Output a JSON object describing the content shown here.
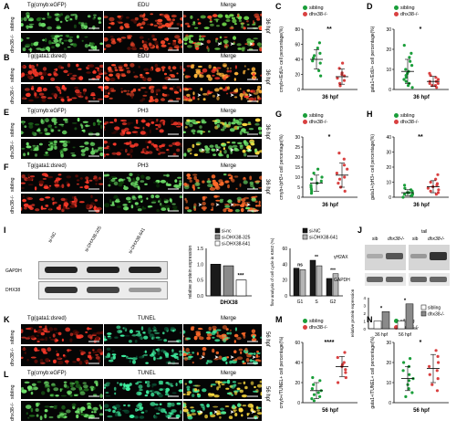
{
  "panels": {
    "A": {
      "letter": "A",
      "titles": [
        "Tg(cmyb:eGFP)",
        "EDU",
        "Merge"
      ],
      "rows": [
        "sibling",
        "dhx38-/-"
      ],
      "stage": "36 hpf"
    },
    "B": {
      "letter": "B",
      "titles": [
        "Tg(gata1:dsred)",
        "EDU",
        "Merge"
      ],
      "rows": [
        "sibling",
        "dhx38-/-"
      ],
      "stage": "36 hpf"
    },
    "E": {
      "letter": "E",
      "titles": [
        "Tg(cmyb:eGFP)",
        "PH3",
        "Merge"
      ],
      "rows": [
        "sibling",
        "dhx38-/-"
      ],
      "stage": "36 hpf"
    },
    "F": {
      "letter": "F",
      "titles": [
        "Tg(gata1:dsred)",
        "PH3",
        "Merge"
      ],
      "rows": [
        "sibling",
        "dhx38-/-"
      ],
      "stage": "36 hpf"
    },
    "K": {
      "letter": "K",
      "titles": [
        "Tg(gata1:dsred)",
        "TUNEL",
        "Merge"
      ],
      "rows": [
        "sibling",
        "dhx38-/-"
      ],
      "stage": "56 hpf"
    },
    "L": {
      "letter": "L",
      "titles": [
        "Tg(cmyb:eGFP)",
        "TUNEL",
        "Merge"
      ],
      "rows": [
        "sibling",
        "dhx38-/-"
      ],
      "stage": "56 hpf"
    }
  },
  "letters": {
    "C": "C",
    "D": "D",
    "G": "G",
    "H": "H",
    "I": "I",
    "J": "J",
    "M": "M",
    "N": "N"
  },
  "legend": {
    "sibling": "sibling",
    "mutant": "dhx38-/-",
    "sib_color": "#1a9e3a",
    "mut_color": "#d94141"
  },
  "chart_data": [
    {
      "id": "C",
      "type": "scatter",
      "ylabel": "cmyb+/EdU+ cell percentage(%)",
      "xlabel": "36 hpf",
      "ylim": [
        0,
        80
      ],
      "yticks": [
        0,
        20,
        40,
        60,
        80
      ],
      "series": [
        {
          "name": "sibling",
          "mean": 40,
          "sd": 13,
          "values": [
            18,
            25,
            35,
            38,
            42,
            45,
            48,
            55,
            62
          ]
        },
        {
          "name": "dhx38-/-",
          "mean": 17,
          "sd": 10,
          "values": [
            5,
            8,
            12,
            15,
            18,
            20,
            22,
            28,
            35
          ]
        }
      ],
      "significance": "**"
    },
    {
      "id": "D",
      "type": "scatter",
      "ylabel": "gata1+/EdU+ cell percentage(%)",
      "xlabel": "36 hpf",
      "ylim": [
        0,
        30
      ],
      "yticks": [
        0,
        10,
        20,
        30
      ],
      "series": [
        {
          "name": "sibling",
          "mean": 9,
          "sd": 6,
          "values": [
            1,
            2,
            3,
            4,
            5,
            6,
            7,
            8,
            9,
            10,
            12,
            14,
            16,
            18,
            22
          ]
        },
        {
          "name": "dhx38-/-",
          "mean": 4,
          "sd": 2.5,
          "values": [
            1,
            2,
            2,
            3,
            3,
            4,
            4,
            5,
            6,
            7,
            8
          ]
        }
      ],
      "significance": "*"
    },
    {
      "id": "G",
      "type": "scatter",
      "ylabel": "cmyb+/pH3+ cell percentage(%)",
      "xlabel": "36 hpf",
      "ylim": [
        0,
        30
      ],
      "yticks": [
        0,
        5,
        10,
        15,
        20,
        25,
        30
      ],
      "series": [
        {
          "name": "sibling",
          "mean": 7,
          "sd": 4,
          "values": [
            2,
            3,
            4,
            5,
            6,
            7,
            8,
            9,
            10,
            12,
            14
          ]
        },
        {
          "name": "dhx38-/-",
          "mean": 11,
          "sd": 6,
          "values": [
            3,
            5,
            7,
            9,
            10,
            12,
            14,
            16,
            19,
            22
          ]
        }
      ],
      "significance": "*"
    },
    {
      "id": "H",
      "type": "scatter",
      "ylabel": "gata1+/pH3+ cell percentage(%)",
      "xlabel": "36 hpf",
      "ylim": [
        0,
        40
      ],
      "yticks": [
        0,
        10,
        20,
        30,
        40
      ],
      "series": [
        {
          "name": "sibling",
          "mean": 3,
          "sd": 2,
          "values": [
            0,
            1,
            1,
            2,
            2,
            3,
            3,
            4,
            5,
            6,
            8
          ]
        },
        {
          "name": "dhx38-/-",
          "mean": 7,
          "sd": 4,
          "values": [
            2,
            3,
            4,
            5,
            6,
            7,
            8,
            9,
            10,
            12,
            15
          ]
        }
      ],
      "significance": "**"
    },
    {
      "id": "I_bar",
      "type": "bar",
      "ylabel": "relative protein expression",
      "xlabel": "DHX38",
      "ylim": [
        0,
        1.5
      ],
      "yticks": [
        0.0,
        0.5,
        1.0,
        1.5
      ],
      "series": [
        {
          "name": "si-nc",
          "values": [
            1.0
          ]
        },
        {
          "name": "si-DHX38-325",
          "values": [
            0.95
          ]
        },
        {
          "name": "si-DHX38-641",
          "values": [
            0.5
          ]
        }
      ],
      "significance": "***"
    },
    {
      "id": "I_cycle",
      "type": "bar",
      "ylabel": "flow analysis of cell cycle in K562 (%)",
      "categories": [
        "G1",
        "S",
        "G2"
      ],
      "ylim": [
        0,
        60
      ],
      "yticks": [
        0,
        20,
        40,
        60
      ],
      "series": [
        {
          "name": "si-NC",
          "values": [
            35,
            45,
            22
          ]
        },
        {
          "name": "si-DHX38-641",
          "values": [
            33,
            38,
            28
          ]
        }
      ],
      "significance": [
        "ns",
        "**",
        "***"
      ]
    },
    {
      "id": "J_bar",
      "type": "bar",
      "ylabel": "relative protein expression",
      "categories": [
        "36 hpf",
        "56 hpf"
      ],
      "ylim": [
        0,
        4
      ],
      "yticks": [
        0,
        1,
        2,
        3,
        4
      ],
      "series": [
        {
          "name": "sibling",
          "values": [
            1.0,
            1.0
          ]
        },
        {
          "name": "dhx38-/-",
          "values": [
            2.2,
            3.2
          ]
        }
      ],
      "significance": [
        "*",
        "*"
      ]
    },
    {
      "id": "M",
      "type": "scatter",
      "ylabel": "cmyb+/TUNEL+ cell percentage(%)",
      "xlabel": "56 hpf",
      "ylim": [
        0,
        60
      ],
      "yticks": [
        0,
        20,
        40,
        60
      ],
      "series": [
        {
          "name": "sibling",
          "mean": 12,
          "sd": 8,
          "values": [
            2,
            4,
            6,
            8,
            10,
            12,
            14,
            18,
            22,
            25
          ]
        },
        {
          "name": "dhx38-/-",
          "mean": 36,
          "sd": 10,
          "values": [
            20,
            25,
            30,
            33,
            36,
            38,
            40,
            45,
            50
          ]
        }
      ],
      "significance": "****"
    },
    {
      "id": "N",
      "type": "scatter",
      "ylabel": "gata1+/TUNEL+ cell percentage(%)",
      "xlabel": "56 hpf",
      "ylim": [
        0,
        30
      ],
      "yticks": [
        0,
        10,
        20,
        30
      ],
      "series": [
        {
          "name": "sibling",
          "mean": 12,
          "sd": 6,
          "values": [
            3,
            5,
            7,
            9,
            11,
            12,
            14,
            16,
            18,
            20,
            22
          ]
        },
        {
          "name": "dhx38-/-",
          "mean": 17,
          "sd": 7,
          "values": [
            6,
            9,
            12,
            14,
            16,
            18,
            20,
            23,
            26
          ]
        }
      ],
      "significance": "*"
    }
  ],
  "blots": {
    "I": {
      "lanes": [
        "si-NC",
        "si-DHX38-325",
        "si-DHX38-641"
      ],
      "rows": [
        "GAPDH",
        "DHX38"
      ],
      "legend": [
        "si-nc",
        "si-DHX38-325",
        "si-DHX38-641"
      ],
      "cycle_legend": [
        "si-NC",
        "si-DHX38-641"
      ],
      "cycle_ylabel": "flow analysis of cell cycle in K562 (%)",
      "bar_ylabel": "relative protein expression",
      "bar_xlabel": "DHX38",
      "cycle_x": [
        "G1",
        "S",
        "G2"
      ],
      "cycle_sig": [
        "ns",
        "**",
        "***"
      ]
    },
    "J": {
      "header": "tail",
      "lanes": [
        "sib",
        "dhx38-/-",
        "sib",
        "dhx38-/-"
      ],
      "rows": [
        "γH2AX",
        "GAPDH"
      ],
      "stages": [
        "36 hpf",
        "56 hpf"
      ],
      "legend": [
        "sibling",
        "dhx38-/-"
      ],
      "bar_ylabel": "relative protein expression"
    }
  }
}
